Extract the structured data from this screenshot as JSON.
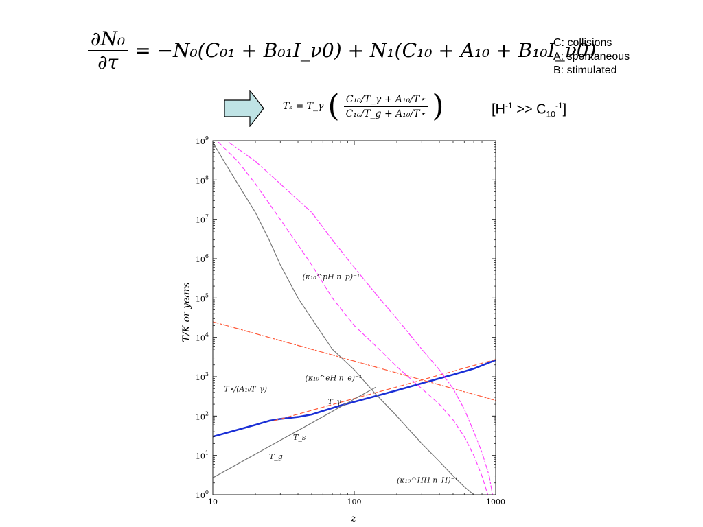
{
  "equation": {
    "lhs_num": "∂N₀",
    "lhs_den": "∂τ",
    "rhs": "= −N₀(C₀₁ + B₀₁I_ν0) + N₁(C₁₀ + A₁₀ + B₁₀I_ν0)"
  },
  "legend": {
    "c": "C: collisions",
    "a": "A: spontaneous",
    "b": "B: stimulated"
  },
  "spin_temp": {
    "lhs": "Tₛ = T_γ",
    "num": "C₁₀/T_γ + A₁₀/T⋆",
    "den": "C₁₀/T_g + A₁₀/T⋆"
  },
  "condition": {
    "open": "[H",
    "sup1": "-1",
    "mid": " >> C",
    "sub": "10",
    "sup2": "-1",
    "close": "]"
  },
  "chart_data": {
    "type": "line",
    "xscale": "log",
    "yscale": "log",
    "xlim": [
      10,
      1000
    ],
    "ylim": [
      1,
      1000000000
    ],
    "xlabel": "z",
    "ylabel": "T/K or years",
    "xticks": [
      "10",
      "100",
      "1000"
    ],
    "ytick_exps": [
      0,
      1,
      2,
      3,
      4,
      5,
      6,
      7,
      8,
      9
    ],
    "series": [
      {
        "name": "T_s",
        "color": "#1a2fd6",
        "dash": "",
        "width": 2.6,
        "points": [
          [
            10,
            30
          ],
          [
            15,
            45
          ],
          [
            20,
            60
          ],
          [
            25,
            76
          ],
          [
            30,
            85
          ],
          [
            40,
            95
          ],
          [
            50,
            110
          ],
          [
            60,
            135
          ],
          [
            80,
            185
          ],
          [
            100,
            230
          ],
          [
            150,
            340
          ],
          [
            200,
            450
          ],
          [
            300,
            680
          ],
          [
            500,
            1130
          ],
          [
            700,
            1600
          ],
          [
            1000,
            2650
          ]
        ]
      },
      {
        "name": "T_γ",
        "color": "#ff5a3a",
        "dash": "6,4",
        "width": 1.2,
        "points": [
          [
            27,
            76
          ],
          [
            50,
            140
          ],
          [
            100,
            280
          ],
          [
            200,
            550
          ],
          [
            400,
            1100
          ],
          [
            1000,
            2750
          ]
        ]
      },
      {
        "name": "T_g",
        "color": "#777777",
        "dash": "",
        "width": 1.2,
        "points": [
          [
            10,
            2.7
          ],
          [
            20,
            10.8
          ],
          [
            50,
            67
          ],
          [
            100,
            270
          ],
          [
            142,
            540
          ]
        ]
      },
      {
        "name": "T⋆/(A₁₀T_γ)",
        "color": "#ff5a3a",
        "dash": "8,3,2,3",
        "width": 1.2,
        "points": [
          [
            10,
            25000
          ],
          [
            30,
            8300
          ],
          [
            100,
            2500
          ],
          [
            300,
            830
          ],
          [
            1000,
            250
          ]
        ]
      },
      {
        "name": "(κ₁₀^HH n_H)⁻¹",
        "color": "#777777",
        "dash": "",
        "width": 1.2,
        "points": [
          [
            10,
            900000000
          ],
          [
            12,
            300000000
          ],
          [
            15,
            80000000
          ],
          [
            20,
            15000000
          ],
          [
            25,
            3000000
          ],
          [
            30,
            700000
          ],
          [
            40,
            100000
          ],
          [
            50,
            30000
          ],
          [
            70,
            5000
          ],
          [
            100,
            1500
          ],
          [
            140,
            380
          ],
          [
            200,
            100
          ],
          [
            300,
            20
          ],
          [
            400,
            7
          ],
          [
            500,
            3
          ],
          [
            600,
            1.6
          ],
          [
            700,
            1
          ]
        ]
      },
      {
        "name": "(κ₁₀^eH n_e)⁻¹",
        "color": "#ff44ff",
        "dash": "6,4",
        "width": 1.2,
        "points": [
          [
            11,
            900000000
          ],
          [
            15,
            300000000
          ],
          [
            20,
            80000000
          ],
          [
            30,
            10000000
          ],
          [
            50,
            700000
          ],
          [
            70,
            100000
          ],
          [
            100,
            20000
          ],
          [
            150,
            5000
          ],
          [
            200,
            1800
          ],
          [
            300,
            500
          ],
          [
            400,
            200
          ],
          [
            500,
            80
          ],
          [
            600,
            30
          ],
          [
            700,
            10
          ],
          [
            800,
            3
          ],
          [
            880,
            1
          ]
        ]
      },
      {
        "name": "(κ₁₀^pH n_p)⁻¹",
        "color": "#ff44ff",
        "dash": "8,3,2,3",
        "width": 1.2,
        "points": [
          [
            13,
            900000000
          ],
          [
            20,
            300000000
          ],
          [
            30,
            80000000
          ],
          [
            50,
            15000000
          ],
          [
            70,
            3000000
          ],
          [
            100,
            600000
          ],
          [
            150,
            100000
          ],
          [
            200,
            30000
          ],
          [
            300,
            5000
          ],
          [
            400,
            1500
          ],
          [
            500,
            500
          ],
          [
            600,
            150
          ],
          [
            700,
            40
          ],
          [
            800,
            12
          ],
          [
            900,
            3
          ],
          [
            950,
            1
          ]
        ]
      }
    ],
    "labels": [
      {
        "text": "(κ₁₀^pH n_p)⁻¹",
        "x": 43,
        "y": 300000
      },
      {
        "text": "(κ₁₀^eH n_e)⁻¹",
        "x": 45,
        "y": 800
      },
      {
        "text": "T⋆/(A₁₀T_γ)",
        "x": 12,
        "y": 420
      },
      {
        "text": "T_γ",
        "x": 65,
        "y": 200
      },
      {
        "text": "T_s",
        "x": 37,
        "y": 25
      },
      {
        "text": "T_g",
        "x": 25,
        "y": 8
      },
      {
        "text": "(κ₁₀^HH n_H)⁻¹",
        "x": 200,
        "y": 2
      }
    ]
  }
}
